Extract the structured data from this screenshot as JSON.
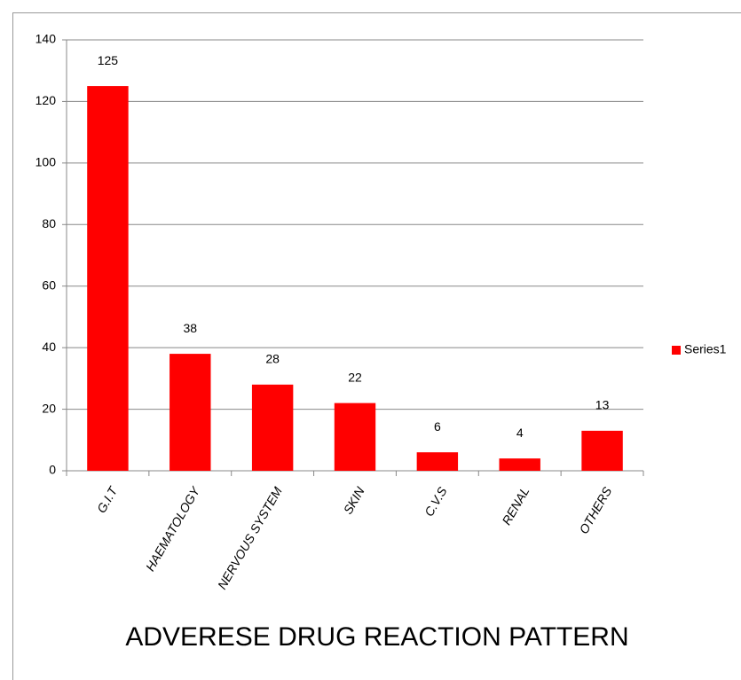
{
  "chart_data": {
    "type": "bar",
    "title": "ADVERESE DRUG REACTION PATTERN",
    "categories": [
      "G.I.T",
      "HAEMATOLOGY",
      "NERVOUS SYSTEM",
      "SKIN",
      "C.V.S",
      "RENAL",
      "OTHERS"
    ],
    "series": [
      {
        "name": "Series1",
        "color": "#ff0000",
        "values": [
          125,
          38,
          28,
          22,
          6,
          4,
          13
        ]
      }
    ],
    "ylim": [
      0,
      140
    ],
    "yticks": [
      0,
      20,
      40,
      60,
      80,
      100,
      120,
      140
    ],
    "grid": true,
    "legend": "right"
  }
}
